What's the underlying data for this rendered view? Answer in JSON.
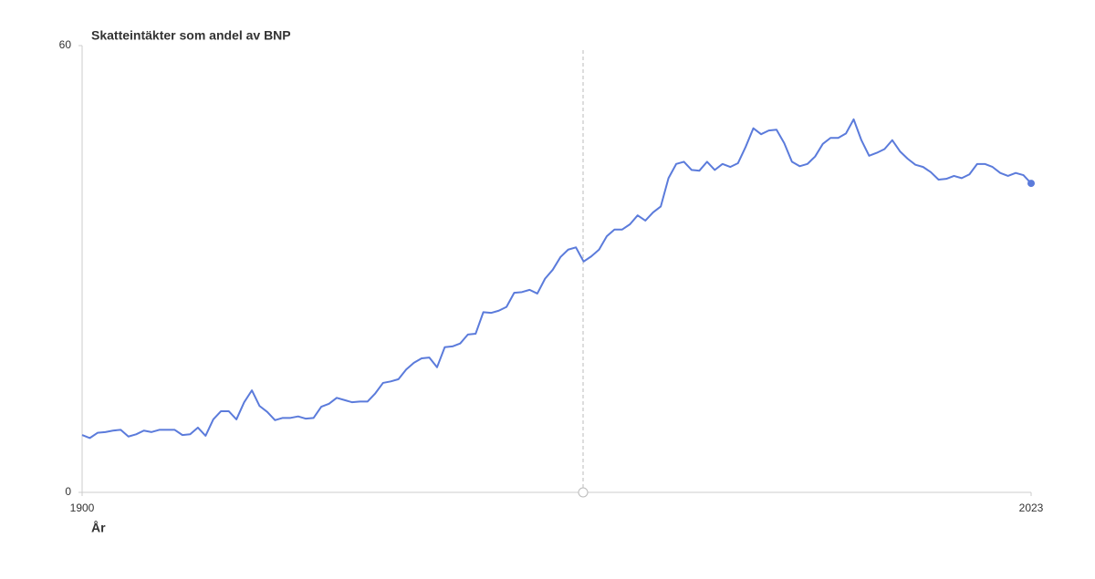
{
  "chart_data": {
    "type": "line",
    "title": "Skatteintäkter som andel av BNP",
    "x_label": "År",
    "x": [
      1900,
      1901,
      1902,
      1903,
      1904,
      1905,
      1906,
      1907,
      1908,
      1909,
      1910,
      1911,
      1912,
      1913,
      1914,
      1915,
      1916,
      1917,
      1918,
      1919,
      1920,
      1921,
      1922,
      1923,
      1924,
      1925,
      1926,
      1927,
      1928,
      1929,
      1930,
      1931,
      1932,
      1933,
      1934,
      1935,
      1936,
      1937,
      1938,
      1939,
      1940,
      1941,
      1942,
      1943,
      1944,
      1945,
      1946,
      1947,
      1948,
      1949,
      1950,
      1951,
      1952,
      1953,
      1954,
      1955,
      1956,
      1957,
      1958,
      1959,
      1960,
      1961,
      1962,
      1963,
      1964,
      1965,
      1966,
      1967,
      1968,
      1969,
      1970,
      1971,
      1972,
      1973,
      1974,
      1975,
      1976,
      1977,
      1978,
      1979,
      1980,
      1981,
      1982,
      1983,
      1984,
      1985,
      1986,
      1987,
      1988,
      1989,
      1990,
      1991,
      1992,
      1993,
      1994,
      1995,
      1996,
      1997,
      1998,
      1999,
      2000,
      2001,
      2002,
      2003,
      2004,
      2005,
      2006,
      2007,
      2008,
      2009,
      2010,
      2011,
      2012,
      2013,
      2014,
      2015,
      2016,
      2017,
      2018,
      2019,
      2020,
      2021,
      2022,
      2023
    ],
    "values": [
      7.7,
      7.3,
      8.0,
      8.1,
      8.3,
      8.4,
      7.5,
      7.8,
      8.3,
      8.1,
      8.4,
      8.4,
      8.4,
      7.7,
      7.8,
      8.7,
      7.6,
      9.8,
      10.9,
      10.9,
      9.8,
      12.1,
      13.7,
      11.6,
      10.8,
      9.7,
      10.0,
      10.0,
      10.2,
      9.9,
      10.0,
      11.5,
      11.9,
      12.7,
      12.4,
      12.1,
      12.2,
      12.2,
      13.3,
      14.7,
      14.9,
      15.2,
      16.5,
      17.4,
      18.0,
      18.1,
      16.8,
      19.5,
      19.6,
      20.0,
      21.2,
      21.3,
      24.2,
      24.1,
      24.4,
      24.9,
      26.8,
      26.9,
      27.2,
      26.7,
      28.7,
      29.9,
      31.6,
      32.6,
      32.9,
      31.0,
      31.7,
      32.6,
      34.4,
      35.3,
      35.3,
      36.0,
      37.2,
      36.5,
      37.6,
      38.4,
      42.2,
      44.1,
      44.4,
      43.3,
      43.2,
      44.4,
      43.3,
      44.1,
      43.7,
      44.2,
      46.4,
      48.9,
      48.1,
      48.6,
      48.7,
      46.9,
      44.4,
      43.8,
      44.1,
      45.1,
      46.8,
      47.6,
      47.6,
      48.2,
      50.1,
      47.3,
      45.2,
      45.6,
      46.1,
      47.3,
      45.8,
      44.8,
      44.0,
      43.7,
      43.0,
      42.0,
      42.1,
      42.5,
      42.2,
      42.7,
      44.1,
      44.1,
      43.7,
      42.9,
      42.5,
      42.9,
      42.6,
      41.5
    ],
    "color": "#5b7bdb",
    "xlim": [
      1900,
      2023
    ],
    "xticks": [
      1900,
      2023
    ],
    "ylim": [
      0,
      60
    ],
    "yticks": [
      0,
      60
    ]
  }
}
